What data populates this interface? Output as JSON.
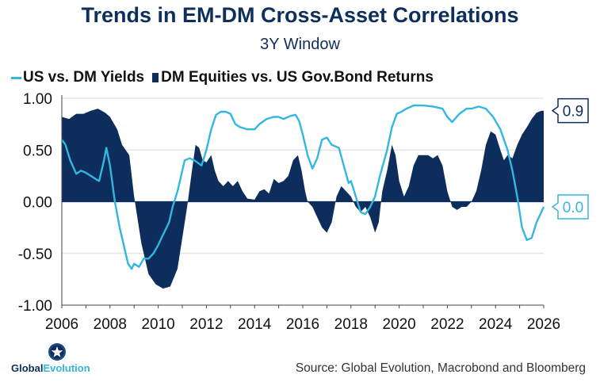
{
  "chart_data": {
    "type": "area",
    "title": "Trends in EM-DM Cross-Asset Correlations",
    "subtitle": "3Y Window",
    "xlabel": "",
    "ylabel": "",
    "xlim": [
      2006,
      2026
    ],
    "ylim": [
      -1.0,
      1.0
    ],
    "y_ticks": [
      1.0,
      0.5,
      0.0,
      -0.5,
      -1.0
    ],
    "y_tick_labels": [
      "1.00",
      "0.50",
      "0.00",
      "-0.50",
      "-1.00"
    ],
    "x_ticks": [
      2006,
      2008,
      2010,
      2012,
      2014,
      2016,
      2018,
      2020,
      2022,
      2024,
      2026
    ],
    "x_tick_labels": [
      "2006",
      "2008",
      "2010",
      "2012",
      "2014",
      "2016",
      "2018",
      "2020",
      "2022",
      "2024",
      "2026"
    ],
    "grid": true,
    "legend_position": "top-left",
    "series": [
      {
        "name": "US vs. DM Yields",
        "type": "line",
        "color": "#33b6e0",
        "end_label": "0.0",
        "points": [
          [
            2006.0,
            0.6
          ],
          [
            2006.15,
            0.55
          ],
          [
            2006.35,
            0.4
          ],
          [
            2006.6,
            0.27
          ],
          [
            2006.8,
            0.3
          ],
          [
            2007.0,
            0.28
          ],
          [
            2007.2,
            0.25
          ],
          [
            2007.4,
            0.22
          ],
          [
            2007.55,
            0.2
          ],
          [
            2007.75,
            0.4
          ],
          [
            2007.85,
            0.52
          ],
          [
            2008.0,
            0.35
          ],
          [
            2008.2,
            0.0
          ],
          [
            2008.4,
            -0.25
          ],
          [
            2008.6,
            -0.45
          ],
          [
            2008.75,
            -0.6
          ],
          [
            2008.9,
            -0.65
          ],
          [
            2009.0,
            -0.6
          ],
          [
            2009.2,
            -0.63
          ],
          [
            2009.4,
            -0.55
          ],
          [
            2009.6,
            -0.55
          ],
          [
            2009.8,
            -0.5
          ],
          [
            2010.0,
            -0.42
          ],
          [
            2010.2,
            -0.32
          ],
          [
            2010.45,
            -0.2
          ],
          [
            2010.6,
            -0.05
          ],
          [
            2010.8,
            0.1
          ],
          [
            2010.95,
            0.25
          ],
          [
            2011.1,
            0.4
          ],
          [
            2011.3,
            0.42
          ],
          [
            2011.5,
            0.4
          ],
          [
            2011.8,
            0.35
          ],
          [
            2012.0,
            0.5
          ],
          [
            2012.2,
            0.7
          ],
          [
            2012.4,
            0.84
          ],
          [
            2012.6,
            0.87
          ],
          [
            2012.8,
            0.87
          ],
          [
            2013.0,
            0.85
          ],
          [
            2013.2,
            0.75
          ],
          [
            2013.4,
            0.72
          ],
          [
            2013.7,
            0.7
          ],
          [
            2014.0,
            0.7
          ],
          [
            2014.2,
            0.75
          ],
          [
            2014.5,
            0.8
          ],
          [
            2014.8,
            0.82
          ],
          [
            2015.0,
            0.82
          ],
          [
            2015.2,
            0.8
          ],
          [
            2015.5,
            0.83
          ],
          [
            2015.7,
            0.84
          ],
          [
            2015.85,
            0.78
          ],
          [
            2016.0,
            0.65
          ],
          [
            2016.2,
            0.45
          ],
          [
            2016.4,
            0.32
          ],
          [
            2016.6,
            0.42
          ],
          [
            2016.8,
            0.6
          ],
          [
            2017.0,
            0.62
          ],
          [
            2017.2,
            0.55
          ],
          [
            2017.5,
            0.52
          ],
          [
            2017.7,
            0.35
          ],
          [
            2017.9,
            0.18
          ],
          [
            2018.0,
            0.2
          ],
          [
            2018.2,
            0.05
          ],
          [
            2018.4,
            -0.1
          ],
          [
            2018.6,
            -0.12
          ],
          [
            2018.8,
            -0.05
          ],
          [
            2019.0,
            0.05
          ],
          [
            2019.2,
            0.25
          ],
          [
            2019.5,
            0.5
          ],
          [
            2019.7,
            0.72
          ],
          [
            2019.9,
            0.85
          ],
          [
            2020.1,
            0.87
          ],
          [
            2020.3,
            0.9
          ],
          [
            2020.6,
            0.93
          ],
          [
            2021.0,
            0.93
          ],
          [
            2021.4,
            0.92
          ],
          [
            2021.8,
            0.9
          ],
          [
            2022.0,
            0.82
          ],
          [
            2022.2,
            0.77
          ],
          [
            2022.5,
            0.85
          ],
          [
            2022.8,
            0.9
          ],
          [
            2023.0,
            0.9
          ],
          [
            2023.3,
            0.92
          ],
          [
            2023.6,
            0.9
          ],
          [
            2023.9,
            0.82
          ],
          [
            2024.2,
            0.7
          ],
          [
            2024.5,
            0.5
          ],
          [
            2024.7,
            0.3
          ],
          [
            2024.9,
            0.05
          ],
          [
            2025.1,
            -0.25
          ],
          [
            2025.3,
            -0.37
          ],
          [
            2025.5,
            -0.35
          ],
          [
            2025.7,
            -0.2
          ],
          [
            2025.9,
            -0.1
          ],
          [
            2026.0,
            -0.05
          ]
        ]
      },
      {
        "name": "DM Equities vs. US Gov.Bond Returns",
        "type": "area",
        "color": "#0d2e5c",
        "end_label": "0.9",
        "points": [
          [
            2006.0,
            0.82
          ],
          [
            2006.3,
            0.8
          ],
          [
            2006.6,
            0.85
          ],
          [
            2006.9,
            0.85
          ],
          [
            2007.2,
            0.88
          ],
          [
            2007.5,
            0.9
          ],
          [
            2007.8,
            0.86
          ],
          [
            2008.0,
            0.82
          ],
          [
            2008.3,
            0.7
          ],
          [
            2008.5,
            0.55
          ],
          [
            2008.8,
            0.45
          ],
          [
            2009.0,
            0.05
          ],
          [
            2009.3,
            -0.4
          ],
          [
            2009.6,
            -0.7
          ],
          [
            2009.9,
            -0.8
          ],
          [
            2010.2,
            -0.84
          ],
          [
            2010.5,
            -0.82
          ],
          [
            2010.8,
            -0.65
          ],
          [
            2011.0,
            -0.35
          ],
          [
            2011.2,
            -0.05
          ],
          [
            2011.4,
            0.3
          ],
          [
            2011.55,
            0.55
          ],
          [
            2011.7,
            0.52
          ],
          [
            2011.85,
            0.4
          ],
          [
            2012.0,
            0.38
          ],
          [
            2012.2,
            0.45
          ],
          [
            2012.35,
            0.3
          ],
          [
            2012.5,
            0.2
          ],
          [
            2012.7,
            0.15
          ],
          [
            2012.9,
            0.2
          ],
          [
            2013.1,
            0.15
          ],
          [
            2013.3,
            0.2
          ],
          [
            2013.5,
            0.1
          ],
          [
            2013.7,
            0.03
          ],
          [
            2014.0,
            0.02
          ],
          [
            2014.2,
            0.1
          ],
          [
            2014.4,
            0.12
          ],
          [
            2014.6,
            0.08
          ],
          [
            2014.8,
            0.22
          ],
          [
            2015.0,
            0.18
          ],
          [
            2015.2,
            0.2
          ],
          [
            2015.4,
            0.25
          ],
          [
            2015.6,
            0.4
          ],
          [
            2015.8,
            0.45
          ],
          [
            2015.95,
            0.3
          ],
          [
            2016.1,
            0.1
          ],
          [
            2016.2,
            0.0
          ],
          [
            2016.4,
            -0.05
          ],
          [
            2016.6,
            -0.15
          ],
          [
            2016.8,
            -0.25
          ],
          [
            2017.0,
            -0.3
          ],
          [
            2017.2,
            -0.2
          ],
          [
            2017.4,
            0.05
          ],
          [
            2017.6,
            0.15
          ],
          [
            2017.8,
            0.1
          ],
          [
            2018.0,
            0.05
          ],
          [
            2018.2,
            -0.05
          ],
          [
            2018.4,
            -0.1
          ],
          [
            2018.6,
            -0.05
          ],
          [
            2018.8,
            -0.15
          ],
          [
            2019.0,
            -0.3
          ],
          [
            2019.15,
            -0.2
          ],
          [
            2019.3,
            0.1
          ],
          [
            2019.5,
            0.3
          ],
          [
            2019.7,
            0.55
          ],
          [
            2019.85,
            0.45
          ],
          [
            2020.0,
            0.2
          ],
          [
            2020.2,
            0.05
          ],
          [
            2020.4,
            0.15
          ],
          [
            2020.6,
            0.35
          ],
          [
            2020.8,
            0.45
          ],
          [
            2021.0,
            0.45
          ],
          [
            2021.2,
            0.45
          ],
          [
            2021.4,
            0.42
          ],
          [
            2021.6,
            0.45
          ],
          [
            2021.8,
            0.35
          ],
          [
            2022.0,
            0.1
          ],
          [
            2022.2,
            -0.05
          ],
          [
            2022.4,
            -0.08
          ],
          [
            2022.6,
            -0.05
          ],
          [
            2022.8,
            -0.05
          ],
          [
            2023.0,
            0.0
          ],
          [
            2023.2,
            0.1
          ],
          [
            2023.4,
            0.3
          ],
          [
            2023.6,
            0.55
          ],
          [
            2023.8,
            0.68
          ],
          [
            2024.0,
            0.65
          ],
          [
            2024.2,
            0.5
          ],
          [
            2024.35,
            0.4
          ],
          [
            2024.5,
            0.45
          ],
          [
            2024.7,
            0.42
          ],
          [
            2024.9,
            0.55
          ],
          [
            2025.1,
            0.65
          ],
          [
            2025.3,
            0.72
          ],
          [
            2025.5,
            0.8
          ],
          [
            2025.7,
            0.86
          ],
          [
            2025.9,
            0.88
          ],
          [
            2026.0,
            0.88
          ]
        ]
      }
    ],
    "source": "Source: Global Evolution, Macrobond and Bloomberg"
  },
  "legend": {
    "line_label": "US vs. DM Yields",
    "area_label": "DM Equities vs. US Gov.Bond Returns"
  },
  "logo": {
    "part1": "Global",
    "part2": "Evolution"
  },
  "colors": {
    "line": "#33b6e0",
    "area": "#0d2e5c",
    "title": "#0e2f5c"
  }
}
